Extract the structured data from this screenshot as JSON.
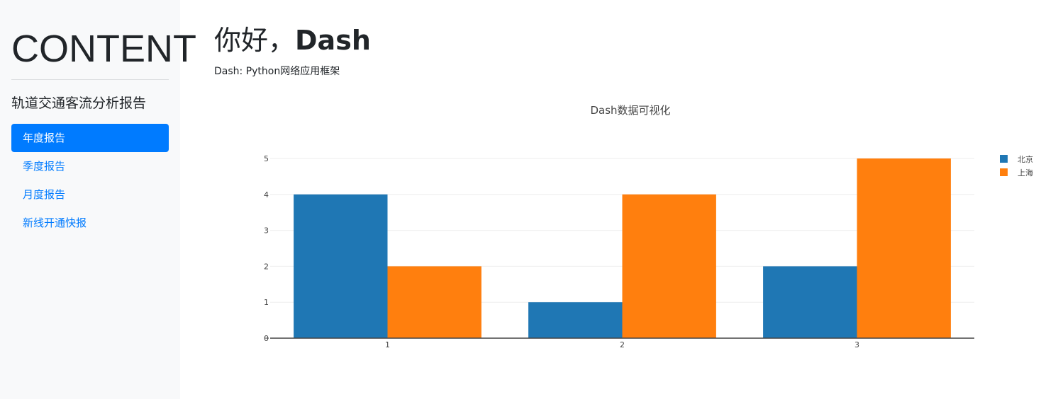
{
  "sidebar": {
    "title": "CONTENT",
    "subtitle": "轨道交通客流分析报告",
    "items": [
      {
        "label": "年度报告",
        "active": true
      },
      {
        "label": "季度报告",
        "active": false
      },
      {
        "label": "月度报告",
        "active": false
      },
      {
        "label": "新线开通快报",
        "active": false
      }
    ]
  },
  "main": {
    "title_cn": "你好，",
    "title_en": "Dash",
    "subtitle": "Dash: Python网络应用框架"
  },
  "colors": {
    "accent": "#007bff",
    "series1": "#1f77b4",
    "series2": "#ff7f0e",
    "sidebar_bg": "#f8f9fa"
  },
  "chart_data": {
    "type": "bar",
    "title": "Dash数据可视化",
    "categories": [
      "1",
      "2",
      "3"
    ],
    "series": [
      {
        "name": "北京",
        "values": [
          4,
          1,
          2
        ],
        "color": "#1f77b4"
      },
      {
        "name": "上海",
        "values": [
          2,
          4,
          5
        ],
        "color": "#ff7f0e"
      }
    ],
    "ylim": [
      0,
      5
    ],
    "yticks": [
      "0",
      "1",
      "2",
      "3",
      "4",
      "5"
    ],
    "grid": true,
    "legend": "top-right"
  }
}
